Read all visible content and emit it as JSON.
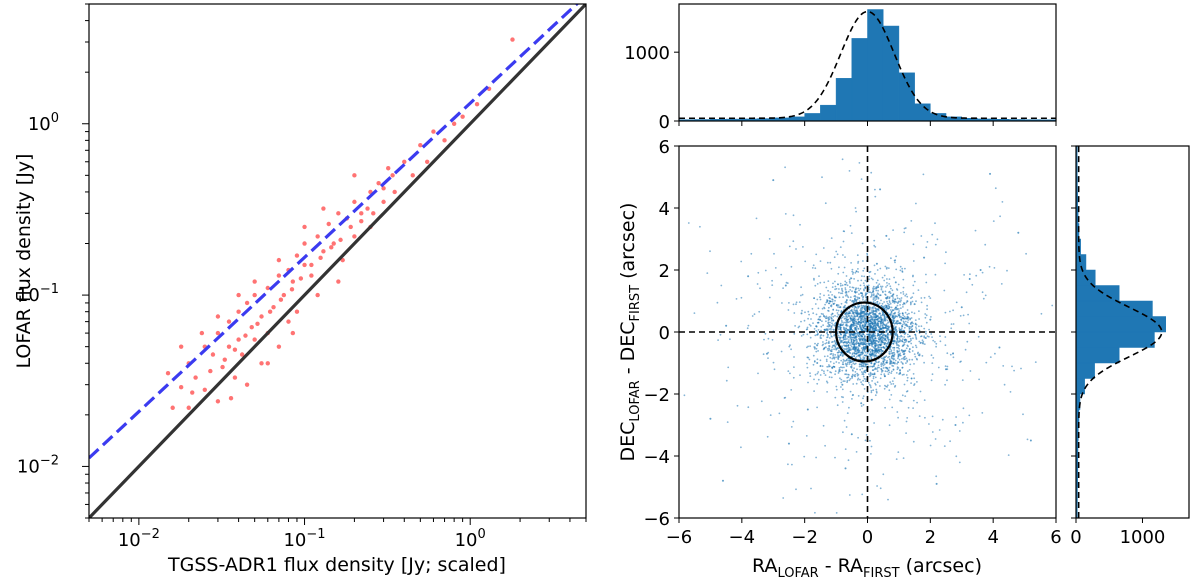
{
  "chart_data": [
    {
      "type": "scatter",
      "panel": "flux-comparison",
      "xlabel": "TGSS-ADR1 flux density [Jy; scaled]",
      "ylabel": "LOFAR flux density [Jy]",
      "xscale": "log",
      "yscale": "log",
      "xlim": [
        0.005,
        5.0
      ],
      "ylim": [
        0.005,
        5.0
      ],
      "x_ticks": [
        {
          "value": 0.01,
          "base": "10",
          "exp": "−2"
        },
        {
          "value": 0.1,
          "base": "10",
          "exp": "−1"
        },
        {
          "value": 1,
          "base": "10",
          "exp": "0"
        }
      ],
      "y_ticks": [
        {
          "value": 0.01,
          "base": "10",
          "exp": "−2"
        },
        {
          "value": 0.1,
          "base": "10",
          "exp": "−1"
        },
        {
          "value": 1,
          "base": "10",
          "exp": "0"
        }
      ],
      "scatter_color": "#ff0000",
      "scatter_points": [
        [
          0.015,
          0.035
        ],
        [
          0.018,
          0.029
        ],
        [
          0.02,
          0.04
        ],
        [
          0.022,
          0.033
        ],
        [
          0.025,
          0.05
        ],
        [
          0.025,
          0.028
        ],
        [
          0.028,
          0.045
        ],
        [
          0.03,
          0.06
        ],
        [
          0.03,
          0.024
        ],
        [
          0.032,
          0.038
        ],
        [
          0.035,
          0.07
        ],
        [
          0.035,
          0.05
        ],
        [
          0.038,
          0.033
        ],
        [
          0.04,
          0.055
        ],
        [
          0.04,
          0.08
        ],
        [
          0.042,
          0.045
        ],
        [
          0.045,
          0.09
        ],
        [
          0.045,
          0.03
        ],
        [
          0.048,
          0.065
        ],
        [
          0.05,
          0.1
        ],
        [
          0.05,
          0.055
        ],
        [
          0.055,
          0.075
        ],
        [
          0.055,
          0.04
        ],
        [
          0.06,
          0.11
        ],
        [
          0.06,
          0.06
        ],
        [
          0.065,
          0.085
        ],
        [
          0.07,
          0.13
        ],
        [
          0.07,
          0.05
        ],
        [
          0.075,
          0.1
        ],
        [
          0.08,
          0.14
        ],
        [
          0.08,
          0.07
        ],
        [
          0.085,
          0.12
        ],
        [
          0.09,
          0.17
        ],
        [
          0.09,
          0.08
        ],
        [
          0.1,
          0.15
        ],
        [
          0.1,
          0.2
        ],
        [
          0.11,
          0.13
        ],
        [
          0.12,
          0.22
        ],
        [
          0.12,
          0.1
        ],
        [
          0.13,
          0.18
        ],
        [
          0.14,
          0.26
        ],
        [
          0.15,
          0.2
        ],
        [
          0.16,
          0.3
        ],
        [
          0.17,
          0.16
        ],
        [
          0.18,
          0.28
        ],
        [
          0.2,
          0.35
        ],
        [
          0.2,
          0.22
        ],
        [
          0.22,
          0.3
        ],
        [
          0.25,
          0.4
        ],
        [
          0.25,
          0.25
        ],
        [
          0.28,
          0.45
        ],
        [
          0.3,
          0.35
        ],
        [
          0.32,
          0.55
        ],
        [
          0.35,
          0.4
        ],
        [
          0.4,
          0.6
        ],
        [
          0.45,
          0.5
        ],
        [
          0.5,
          0.75
        ],
        [
          0.55,
          0.6
        ],
        [
          0.6,
          0.9
        ],
        [
          0.7,
          0.8
        ],
        [
          0.8,
          1.0
        ],
        [
          0.9,
          1.1
        ],
        [
          1.1,
          1.3
        ],
        [
          1.3,
          1.6
        ],
        [
          1.8,
          3.1
        ],
        [
          0.018,
          0.05
        ],
        [
          0.02,
          0.022
        ],
        [
          0.024,
          0.06
        ],
        [
          0.03,
          0.075
        ],
        [
          0.036,
          0.025
        ],
        [
          0.04,
          0.1
        ],
        [
          0.05,
          0.12
        ],
        [
          0.06,
          0.04
        ],
        [
          0.07,
          0.16
        ],
        [
          0.085,
          0.06
        ],
        [
          0.1,
          0.25
        ],
        [
          0.13,
          0.32
        ],
        [
          0.16,
          0.12
        ],
        [
          0.2,
          0.5
        ],
        [
          0.26,
          0.3
        ],
        [
          0.016,
          0.022
        ],
        [
          0.021,
          0.027
        ],
        [
          0.027,
          0.036
        ],
        [
          0.033,
          0.042
        ],
        [
          0.038,
          0.048
        ],
        [
          0.044,
          0.058
        ],
        [
          0.052,
          0.068
        ],
        [
          0.062,
          0.08
        ],
        [
          0.072,
          0.094
        ],
        [
          0.084,
          0.108
        ],
        [
          0.095,
          0.125
        ],
        [
          0.11,
          0.15
        ],
        [
          0.125,
          0.165
        ],
        [
          0.145,
          0.19
        ],
        [
          0.165,
          0.21
        ],
        [
          0.19,
          0.25
        ],
        [
          0.22,
          0.27
        ],
        [
          0.24,
          0.32
        ],
        [
          0.3,
          0.42
        ],
        [
          0.34,
          0.5
        ]
      ],
      "lines": [
        {
          "style": "solid",
          "color": "#333333",
          "slope": 1.0,
          "intercept_log": 0.0
        },
        {
          "style": "dashed",
          "color": "#3b3bf0",
          "slope": 0.9,
          "intercept_log": 0.12
        }
      ]
    },
    {
      "type": "histogram",
      "panel": "ra-offset-histogram",
      "orientation": "vertical",
      "xlim": [
        -6,
        6
      ],
      "ylim": [
        0,
        1700
      ],
      "y_ticks": [
        {
          "value": 0,
          "label": "0"
        },
        {
          "value": 1000,
          "label": "1000"
        }
      ],
      "bar_color": "#1f77b4",
      "bin_edges": [
        -6,
        -5.5,
        -5,
        -4.5,
        -4,
        -3.5,
        -3,
        -2.5,
        -2,
        -1.5,
        -1,
        -0.5,
        0,
        0.5,
        1,
        1.5,
        2,
        2.5,
        3,
        3.5,
        4,
        4.5,
        5,
        5.5,
        6
      ],
      "counts": [
        20,
        22,
        25,
        28,
        30,
        35,
        45,
        60,
        110,
        230,
        620,
        1200,
        1620,
        1380,
        700,
        250,
        110,
        60,
        40,
        30,
        25,
        22,
        20,
        18
      ],
      "fit_curve": {
        "style": "dashed",
        "amplitude": 1550,
        "mean": 0.0,
        "sigma": 0.85,
        "baseline": 40
      }
    },
    {
      "type": "scatter",
      "panel": "position-offsets",
      "xlabel": {
        "main": "RA",
        "sub1": "LOFAR",
        "mid": " - RA",
        "sub2": "FIRST",
        "tail": " (arcsec)"
      },
      "ylabel": {
        "main": "DEC",
        "sub1": "LOFAR",
        "mid": " - DEC",
        "sub2": "FIRST",
        "tail": " (arcsec)"
      },
      "xlim": [
        -6,
        6
      ],
      "ylim": [
        -6,
        6
      ],
      "x_ticks": [
        {
          "value": -6,
          "label": "−6"
        },
        {
          "value": -4,
          "label": "−4"
        },
        {
          "value": -2,
          "label": "−2"
        },
        {
          "value": 0,
          "label": "0"
        },
        {
          "value": 2,
          "label": "2"
        },
        {
          "value": 4,
          "label": "4"
        },
        {
          "value": 6,
          "label": "6"
        }
      ],
      "y_ticks": [
        {
          "value": -6,
          "label": "−6"
        },
        {
          "value": -4,
          "label": "−4"
        },
        {
          "value": -2,
          "label": "−2"
        },
        {
          "value": 0,
          "label": "0"
        },
        {
          "value": 2,
          "label": "2"
        },
        {
          "value": 4,
          "label": "4"
        },
        {
          "value": 6,
          "label": "6"
        }
      ],
      "point_color": "#1f77b4",
      "points": [
        [
          0.1,
          0.2
        ],
        [
          -0.3,
          0.4
        ],
        [
          0.5,
          -0.2
        ],
        [
          -0.6,
          -0.5
        ],
        [
          0.8,
          0.7
        ],
        [
          -1.0,
          0.3
        ],
        [
          1.2,
          -0.6
        ],
        [
          0.2,
          -1.1
        ],
        [
          -0.4,
          1.3
        ],
        [
          1.5,
          0.9
        ],
        [
          -1.6,
          -1.0
        ],
        [
          0.9,
          1.6
        ],
        [
          -0.8,
          -1.7
        ],
        [
          2.0,
          0.4
        ],
        [
          -2.1,
          0.6
        ],
        [
          0.3,
          2.2
        ],
        [
          -0.2,
          -2.3
        ],
        [
          2.5,
          -1.2
        ],
        [
          -2.6,
          1.5
        ],
        [
          1.8,
          2.4
        ],
        [
          -1.9,
          -2.5
        ],
        [
          3.0,
          0.8
        ],
        [
          -3.2,
          -0.7
        ],
        [
          0.6,
          3.1
        ],
        [
          -0.5,
          -3.3
        ],
        [
          3.6,
          2.0
        ],
        [
          -3.8,
          1.8
        ],
        [
          2.8,
          -3.0
        ],
        [
          -2.5,
          -3.6
        ],
        [
          4.2,
          -0.5
        ],
        [
          -4.5,
          0.2
        ],
        [
          0.4,
          4.6
        ],
        [
          -0.7,
          -4.4
        ],
        [
          4.8,
          3.2
        ],
        [
          -5.0,
          -2.8
        ],
        [
          2.2,
          -4.9
        ],
        [
          -3.0,
          4.9
        ],
        [
          5.2,
          -3.5
        ],
        [
          -4.6,
          -4.8
        ],
        [
          3.9,
          5.1
        ],
        [
          0.05,
          -0.1
        ],
        [
          -0.15,
          0.05
        ],
        [
          0.25,
          0.3
        ],
        [
          -0.35,
          -0.25
        ],
        [
          0.45,
          0.1
        ],
        [
          -0.55,
          0.15
        ],
        [
          0.6,
          -0.45
        ],
        [
          -0.1,
          0.65
        ],
        [
          0.15,
          -0.7
        ],
        [
          -0.7,
          -0.1
        ]
      ],
      "ellipse": {
        "cx": -0.1,
        "cy": 0.0,
        "rx": 0.9,
        "ry": 0.95
      },
      "crosshair": {
        "x": 0,
        "y": 0
      }
    },
    {
      "type": "histogram",
      "panel": "dec-offset-histogram",
      "orientation": "horizontal",
      "xlim": [
        0,
        1700
      ],
      "ylim": [
        -6,
        6
      ],
      "x_ticks": [
        {
          "value": 0,
          "label": "0"
        },
        {
          "value": 1000,
          "label": "1000"
        }
      ],
      "bar_color": "#1f77b4",
      "bin_edges": [
        -6,
        -5.5,
        -5,
        -4.5,
        -4,
        -3.5,
        -3,
        -2.5,
        -2,
        -1.5,
        -1,
        -0.5,
        0,
        0.5,
        1,
        1.5,
        2,
        2.5,
        3,
        3.5,
        4,
        4.5,
        5,
        5.5,
        6
      ],
      "counts": [
        20,
        22,
        25,
        28,
        30,
        35,
        45,
        60,
        130,
        280,
        650,
        1180,
        1350,
        1150,
        650,
        290,
        150,
        70,
        45,
        32,
        25,
        22,
        20,
        18
      ],
      "fit_curve": {
        "style": "dashed",
        "amplitude": 1250,
        "mean": 0.0,
        "sigma": 0.8,
        "baseline": 40
      }
    }
  ]
}
